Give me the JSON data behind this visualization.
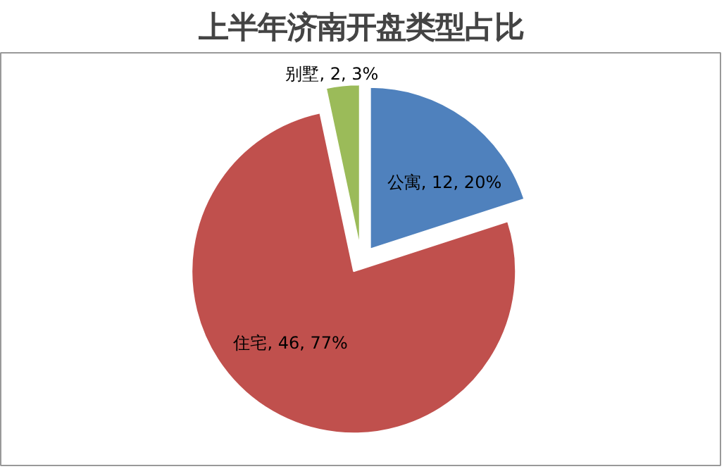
{
  "chart_data": {
    "type": "pie",
    "title": "上半年济南开盘类型占比",
    "categories": [
      "公寓",
      "住宅",
      "别墅"
    ],
    "values": [
      12,
      46,
      2
    ],
    "value_labels": [
      "12, 20%",
      "46, 77%",
      "2, 3%"
    ],
    "colors": [
      "#4f81bd",
      "#c0504d",
      "#9bbb59"
    ]
  }
}
